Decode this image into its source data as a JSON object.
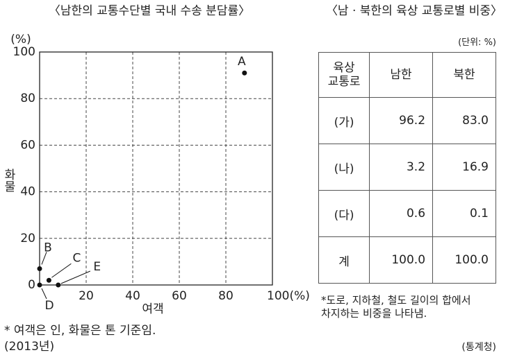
{
  "chart_data": {
    "type": "scatter",
    "title": "〈남한의 교통수단별 국내 수송 분담률〉",
    "y_unit": "(%)",
    "x_label": "여객",
    "y_label": "화물",
    "series": [
      {
        "labels": [
          "A",
          "B",
          "C",
          "D",
          "E"
        ],
        "x": [
          88,
          0,
          4,
          0,
          8
        ],
        "values": [
          91,
          7,
          2,
          0,
          0
        ],
        "color": "#111111"
      }
    ],
    "xlim": [
      0,
      100
    ],
    "ylim": [
      0,
      100
    ],
    "xticks": [
      20,
      40,
      60,
      80,
      {
        "value": 100,
        "label": "100(%)"
      }
    ],
    "yticks": [
      0,
      20,
      40,
      60,
      80,
      100
    ],
    "grid": true,
    "notes": [
      "* 여객은 인, 화물은 톤 기준임.",
      "(2013년)"
    ]
  },
  "table": {
    "title": "〈남 · 북한의 육상 교통로별 비중〉",
    "unit": "(단위: %)",
    "header": [
      "육상\n교통로",
      "남한",
      "북한"
    ],
    "rows": [
      [
        "(가)",
        "96.2",
        "83.0"
      ],
      [
        "(나)",
        "3.2",
        "16.9"
      ],
      [
        "(다)",
        "0.6",
        "0.1"
      ],
      [
        "계",
        "100.0",
        "100.0"
      ]
    ],
    "note": "*도로, 지하철, 철도 길이의 합에서\n차지하는 비중을 나타냄.",
    "source": "(통계청)"
  }
}
